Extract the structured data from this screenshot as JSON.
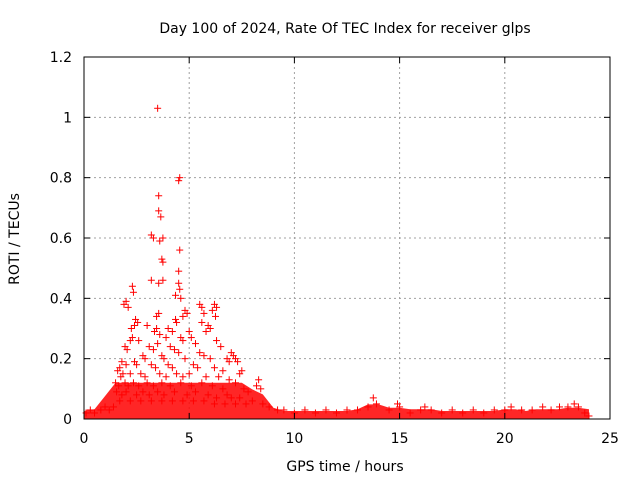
{
  "chart_data": {
    "type": "scatter",
    "title": "Day 100 of 2024, Rate Of TEC Index for receiver glps",
    "xlabel": "GPS time / hours",
    "ylabel": "ROTI / TECUs",
    "xlim": [
      0,
      25
    ],
    "ylim": [
      0,
      1.2
    ],
    "xticks": [
      0,
      5,
      10,
      15,
      20,
      25
    ],
    "xtick_labels": [
      "0",
      "5",
      "10",
      "15",
      "20",
      "25"
    ],
    "yticks": [
      0,
      0.2,
      0.4,
      0.6,
      0.8,
      1.0,
      1.2
    ],
    "ytick_labels": [
      "0",
      "0.2",
      "0.4",
      "0.6",
      "0.8",
      "1",
      "1.2"
    ],
    "grid": true,
    "legend": "none",
    "marker": "plus",
    "series": [
      {
        "name": "ROTI",
        "color": "#ff0000",
        "points": [
          [
            3.5,
            1.03
          ],
          [
            4.5,
            0.79
          ],
          [
            4.55,
            0.8
          ],
          [
            3.55,
            0.74
          ],
          [
            3.55,
            0.69
          ],
          [
            3.65,
            0.67
          ],
          [
            3.2,
            0.61
          ],
          [
            3.3,
            0.6
          ],
          [
            3.6,
            0.59
          ],
          [
            3.75,
            0.6
          ],
          [
            4.55,
            0.56
          ],
          [
            3.7,
            0.53
          ],
          [
            3.75,
            0.52
          ],
          [
            4.5,
            0.49
          ],
          [
            3.2,
            0.46
          ],
          [
            3.75,
            0.46
          ],
          [
            3.55,
            0.45
          ],
          [
            4.5,
            0.45
          ],
          [
            4.55,
            0.43
          ],
          [
            2.3,
            0.44
          ],
          [
            2.35,
            0.42
          ],
          [
            4.35,
            0.41
          ],
          [
            4.6,
            0.4
          ],
          [
            2.0,
            0.39
          ],
          [
            1.9,
            0.38
          ],
          [
            2.1,
            0.37
          ],
          [
            5.5,
            0.38
          ],
          [
            5.6,
            0.37
          ],
          [
            6.2,
            0.38
          ],
          [
            6.3,
            0.37
          ],
          [
            6.1,
            0.36
          ],
          [
            5.7,
            0.35
          ],
          [
            6.25,
            0.34
          ],
          [
            4.8,
            0.36
          ],
          [
            4.9,
            0.35
          ],
          [
            4.7,
            0.34
          ],
          [
            3.55,
            0.35
          ],
          [
            3.45,
            0.34
          ],
          [
            4.35,
            0.33
          ],
          [
            4.4,
            0.32
          ],
          [
            2.45,
            0.33
          ],
          [
            2.55,
            0.32
          ],
          [
            2.4,
            0.31
          ],
          [
            2.25,
            0.3
          ],
          [
            3.0,
            0.31
          ],
          [
            3.45,
            0.3
          ],
          [
            3.35,
            0.29
          ],
          [
            4.0,
            0.3
          ],
          [
            4.2,
            0.29
          ],
          [
            5.9,
            0.31
          ],
          [
            6.0,
            0.3
          ],
          [
            5.6,
            0.32
          ],
          [
            5.8,
            0.29
          ],
          [
            5.0,
            0.29
          ],
          [
            3.6,
            0.28
          ],
          [
            3.9,
            0.27
          ],
          [
            2.3,
            0.27
          ],
          [
            2.2,
            0.26
          ],
          [
            2.6,
            0.26
          ],
          [
            4.6,
            0.27
          ],
          [
            4.7,
            0.26
          ],
          [
            5.1,
            0.27
          ],
          [
            5.3,
            0.25
          ],
          [
            6.3,
            0.26
          ],
          [
            6.5,
            0.24
          ],
          [
            1.95,
            0.24
          ],
          [
            2.05,
            0.23
          ],
          [
            3.1,
            0.24
          ],
          [
            3.3,
            0.23
          ],
          [
            3.5,
            0.25
          ],
          [
            4.1,
            0.24
          ],
          [
            4.3,
            0.23
          ],
          [
            7.0,
            0.22
          ],
          [
            7.1,
            0.21
          ],
          [
            7.2,
            0.2
          ],
          [
            7.3,
            0.19
          ],
          [
            6.8,
            0.2
          ],
          [
            6.9,
            0.19
          ],
          [
            5.5,
            0.22
          ],
          [
            5.7,
            0.21
          ],
          [
            6.0,
            0.2
          ],
          [
            2.8,
            0.21
          ],
          [
            2.9,
            0.2
          ],
          [
            3.7,
            0.21
          ],
          [
            3.8,
            0.2
          ],
          [
            4.5,
            0.22
          ],
          [
            4.8,
            0.2
          ],
          [
            1.8,
            0.19
          ],
          [
            1.7,
            0.17
          ],
          [
            2.0,
            0.18
          ],
          [
            2.4,
            0.19
          ],
          [
            2.5,
            0.18
          ],
          [
            3.2,
            0.18
          ],
          [
            3.4,
            0.17
          ],
          [
            4.0,
            0.18
          ],
          [
            4.2,
            0.17
          ],
          [
            5.2,
            0.18
          ],
          [
            5.4,
            0.17
          ],
          [
            6.2,
            0.17
          ],
          [
            6.6,
            0.16
          ],
          [
            7.5,
            0.16
          ],
          [
            7.4,
            0.15
          ],
          [
            1.6,
            0.16
          ],
          [
            1.75,
            0.14
          ],
          [
            1.85,
            0.15
          ],
          [
            2.2,
            0.15
          ],
          [
            2.7,
            0.15
          ],
          [
            2.9,
            0.14
          ],
          [
            3.6,
            0.15
          ],
          [
            3.9,
            0.14
          ],
          [
            4.4,
            0.15
          ],
          [
            4.7,
            0.14
          ],
          [
            5.0,
            0.15
          ],
          [
            5.8,
            0.14
          ],
          [
            6.4,
            0.14
          ],
          [
            6.9,
            0.13
          ],
          [
            7.2,
            0.12
          ],
          [
            8.3,
            0.13
          ],
          [
            8.2,
            0.11
          ],
          [
            8.4,
            0.1
          ],
          [
            1.5,
            0.12
          ],
          [
            1.65,
            0.11
          ],
          [
            1.95,
            0.12
          ],
          [
            2.1,
            0.11
          ],
          [
            2.35,
            0.12
          ],
          [
            2.6,
            0.11
          ],
          [
            3.0,
            0.12
          ],
          [
            3.3,
            0.11
          ],
          [
            3.7,
            0.12
          ],
          [
            4.1,
            0.11
          ],
          [
            4.6,
            0.12
          ],
          [
            5.1,
            0.11
          ],
          [
            5.6,
            0.12
          ],
          [
            6.1,
            0.11
          ],
          [
            6.6,
            0.1
          ],
          [
            7.6,
            0.1
          ],
          [
            7.8,
            0.09
          ],
          [
            1.55,
            0.09
          ],
          [
            1.8,
            0.08
          ],
          [
            2.0,
            0.09
          ],
          [
            2.5,
            0.08
          ],
          [
            2.8,
            0.09
          ],
          [
            3.1,
            0.08
          ],
          [
            3.5,
            0.09
          ],
          [
            3.8,
            0.08
          ],
          [
            4.3,
            0.09
          ],
          [
            4.9,
            0.08
          ],
          [
            5.3,
            0.09
          ],
          [
            5.9,
            0.08
          ],
          [
            6.3,
            0.07
          ],
          [
            6.8,
            0.08
          ],
          [
            7.0,
            0.07
          ],
          [
            7.4,
            0.07
          ],
          [
            8.0,
            0.06
          ],
          [
            8.5,
            0.05
          ],
          [
            1.7,
            0.06
          ],
          [
            2.2,
            0.06
          ],
          [
            2.7,
            0.06
          ],
          [
            3.2,
            0.06
          ],
          [
            3.7,
            0.06
          ],
          [
            4.2,
            0.06
          ],
          [
            4.7,
            0.06
          ],
          [
            5.2,
            0.06
          ],
          [
            5.7,
            0.06
          ],
          [
            6.2,
            0.05
          ],
          [
            6.7,
            0.05
          ],
          [
            7.2,
            0.05
          ],
          [
            7.7,
            0.05
          ],
          [
            8.8,
            0.04
          ],
          [
            9.2,
            0.03
          ],
          [
            0.1,
            0.02
          ],
          [
            0.3,
            0.03
          ],
          [
            0.5,
            0.02
          ],
          [
            0.8,
            0.03
          ],
          [
            1.0,
            0.04
          ],
          [
            1.2,
            0.03
          ],
          [
            1.4,
            0.04
          ],
          [
            9.5,
            0.03
          ],
          [
            10.0,
            0.02
          ],
          [
            10.5,
            0.03
          ],
          [
            11.0,
            0.02
          ],
          [
            11.5,
            0.03
          ],
          [
            12.0,
            0.02
          ],
          [
            12.5,
            0.03
          ],
          [
            13.0,
            0.03
          ],
          [
            13.5,
            0.04
          ],
          [
            13.75,
            0.07
          ],
          [
            13.9,
            0.05
          ],
          [
            14.5,
            0.03
          ],
          [
            14.9,
            0.05
          ],
          [
            15.0,
            0.04
          ],
          [
            15.5,
            0.02
          ],
          [
            16.0,
            0.03
          ],
          [
            16.2,
            0.04
          ],
          [
            16.5,
            0.03
          ],
          [
            17.0,
            0.02
          ],
          [
            17.5,
            0.03
          ],
          [
            18.0,
            0.02
          ],
          [
            18.5,
            0.03
          ],
          [
            19.0,
            0.02
          ],
          [
            19.5,
            0.03
          ],
          [
            20.0,
            0.03
          ],
          [
            20.3,
            0.04
          ],
          [
            20.8,
            0.03
          ],
          [
            21.3,
            0.03
          ],
          [
            21.8,
            0.04
          ],
          [
            22.2,
            0.03
          ],
          [
            22.6,
            0.04
          ],
          [
            23.0,
            0.04
          ],
          [
            23.3,
            0.05
          ],
          [
            23.5,
            0.04
          ],
          [
            23.8,
            0.02
          ],
          [
            24.0,
            0.01
          ]
        ]
      }
    ]
  }
}
